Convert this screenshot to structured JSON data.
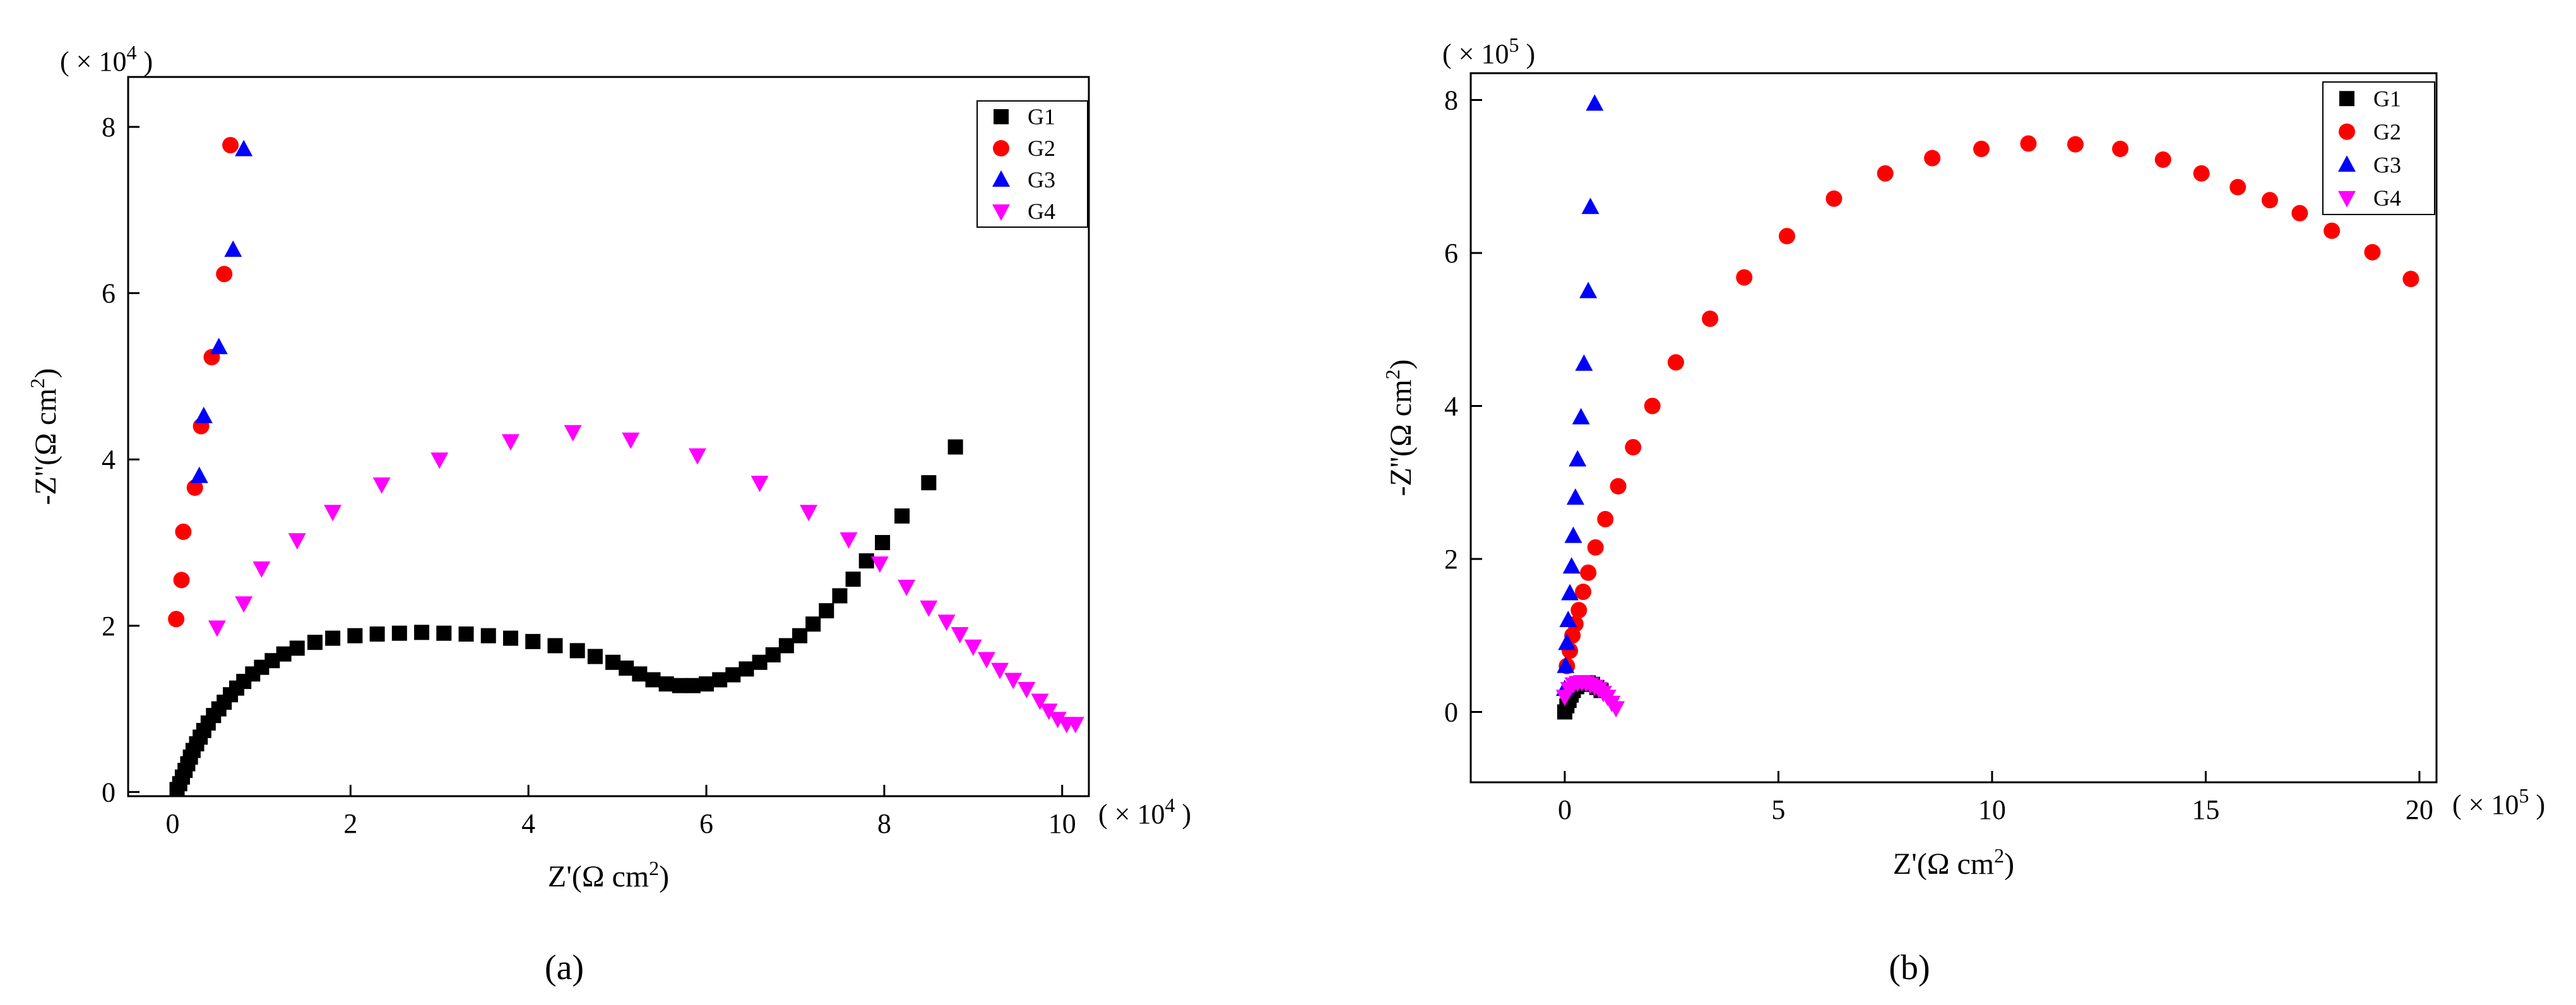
{
  "chart_data": [
    {
      "type": "scatter",
      "caption": "(a)",
      "xlabel": "Z'(Ω cm",
      "xlabel_sup": "2",
      "xlabel_end": ")",
      "ylabel": "-Z''(Ω cm",
      "ylabel_sup": "2",
      "ylabel_end": ")",
      "x_scale": {
        "prefix": "( × 10",
        "exp": "4",
        "suffix": " )"
      },
      "y_scale": {
        "prefix": "( × 10",
        "exp": "4",
        "suffix": " )"
      },
      "xlim": [
        -0.5,
        10.3
      ],
      "ylim": [
        -0.05,
        8.6
      ],
      "xticks": [
        0,
        2,
        4,
        6,
        8,
        10
      ],
      "yticks": [
        0,
        2,
        4,
        6,
        8
      ],
      "legend_position": "top-right",
      "series": [
        {
          "name": "G1",
          "marker": "square",
          "color": "#000000",
          "x": [
            0.05,
            0.08,
            0.11,
            0.14,
            0.17,
            0.2,
            0.23,
            0.27,
            0.31,
            0.35,
            0.4,
            0.46,
            0.52,
            0.58,
            0.65,
            0.72,
            0.8,
            0.9,
            1.0,
            1.12,
            1.25,
            1.4,
            1.6,
            1.8,
            2.05,
            2.3,
            2.55,
            2.8,
            3.05,
            3.3,
            3.55,
            3.8,
            4.05,
            4.3,
            4.55,
            4.75,
            4.95,
            5.1,
            5.25,
            5.4,
            5.55,
            5.7,
            5.85,
            6.0,
            6.15,
            6.3,
            6.45,
            6.6,
            6.75,
            6.9,
            7.05,
            7.2,
            7.35,
            7.5,
            7.65,
            7.8,
            7.98,
            8.2,
            8.5,
            8.8
          ],
          "y": [
            0.03,
            0.1,
            0.18,
            0.26,
            0.34,
            0.42,
            0.5,
            0.58,
            0.66,
            0.74,
            0.83,
            0.92,
            1.0,
            1.08,
            1.17,
            1.25,
            1.33,
            1.42,
            1.5,
            1.58,
            1.66,
            1.73,
            1.8,
            1.85,
            1.88,
            1.9,
            1.91,
            1.92,
            1.91,
            1.9,
            1.88,
            1.85,
            1.81,
            1.76,
            1.7,
            1.63,
            1.56,
            1.49,
            1.42,
            1.35,
            1.3,
            1.28,
            1.28,
            1.3,
            1.35,
            1.41,
            1.48,
            1.56,
            1.65,
            1.76,
            1.88,
            2.02,
            2.18,
            2.36,
            2.56,
            2.78,
            3.0,
            3.32,
            3.72,
            4.15
          ]
        },
        {
          "name": "G2",
          "marker": "circle",
          "color": "#ff0000",
          "x": [
            0.04,
            0.1,
            0.12,
            0.25,
            0.32,
            0.44,
            0.58,
            0.65
          ],
          "y": [
            2.08,
            2.55,
            3.13,
            3.66,
            4.4,
            5.23,
            6.23,
            7.78
          ]
        },
        {
          "name": "G3",
          "marker": "triangle-up",
          "color": "#0000ff",
          "x": [
            0.3,
            0.35,
            0.52,
            0.68,
            0.8
          ],
          "y": [
            3.8,
            4.52,
            5.35,
            6.52,
            7.73
          ]
        },
        {
          "name": "G4",
          "marker": "triangle-down",
          "color": "#ff00ff",
          "x": [
            0.5,
            0.8,
            1.0,
            1.4,
            1.8,
            2.35,
            3.0,
            3.8,
            4.5,
            5.15,
            5.9,
            6.6,
            7.15,
            7.6,
            7.95,
            8.25,
            8.5,
            8.7,
            8.85,
            9.0,
            9.15,
            9.3,
            9.45,
            9.6,
            9.75,
            9.85,
            9.95,
            10.05,
            10.15
          ],
          "y": [
            1.98,
            2.27,
            2.69,
            3.03,
            3.37,
            3.7,
            4.0,
            4.22,
            4.33,
            4.24,
            4.05,
            3.72,
            3.37,
            3.04,
            2.75,
            2.47,
            2.22,
            2.05,
            1.9,
            1.75,
            1.6,
            1.47,
            1.35,
            1.24,
            1.1,
            0.98,
            0.88,
            0.82,
            0.82
          ]
        }
      ]
    },
    {
      "type": "scatter",
      "caption": "(b)",
      "xlabel": "Z'(Ω cm",
      "xlabel_sup": "2",
      "xlabel_end": ")",
      "ylabel": "-Z''(Ω cm",
      "ylabel_sup": "2",
      "ylabel_end": ")",
      "x_scale": {
        "prefix": "( × 10",
        "exp": "5",
        "suffix": " )"
      },
      "y_scale": {
        "prefix": "( × 10",
        "exp": "5",
        "suffix": " )"
      },
      "xlim": [
        -2.2,
        20.4
      ],
      "ylim": [
        -0.92,
        8.35
      ],
      "xticks": [
        0,
        5,
        10,
        15,
        20
      ],
      "yticks": [
        0,
        2,
        4,
        6,
        8
      ],
      "legend_position": "top-right",
      "series": [
        {
          "name": "G1",
          "marker": "square",
          "color": "#000000",
          "x": [
            0.0,
            0.05,
            0.1,
            0.15,
            0.2,
            0.28,
            0.36,
            0.45,
            0.55,
            0.65,
            0.75,
            0.85
          ],
          "y": [
            0.0,
            0.08,
            0.15,
            0.22,
            0.28,
            0.33,
            0.36,
            0.38,
            0.38,
            0.36,
            0.32,
            0.28
          ]
        },
        {
          "name": "G2",
          "marker": "circle",
          "color": "#ff0000",
          "x": [
            0.05,
            0.12,
            0.18,
            0.25,
            0.33,
            0.43,
            0.55,
            0.72,
            0.95,
            1.25,
            1.6,
            2.05,
            2.6,
            3.4,
            4.2,
            5.2,
            6.3,
            7.5,
            8.6,
            9.75,
            10.85,
            11.95,
            13.0,
            14.0,
            14.9,
            15.75,
            16.5,
            17.2,
            17.95,
            18.9,
            19.8
          ],
          "y": [
            0.6,
            0.8,
            1.0,
            1.15,
            1.33,
            1.57,
            1.82,
            2.15,
            2.52,
            2.95,
            3.46,
            4.0,
            4.57,
            5.14,
            5.68,
            6.22,
            6.71,
            7.04,
            7.24,
            7.36,
            7.43,
            7.42,
            7.36,
            7.22,
            7.04,
            6.86,
            6.69,
            6.52,
            6.29,
            6.01,
            5.66
          ]
        },
        {
          "name": "G3",
          "marker": "triangle-up",
          "color": "#0000ff",
          "x": [
            0.0,
            0.02,
            0.05,
            0.08,
            0.12,
            0.16,
            0.2,
            0.25,
            0.3,
            0.38,
            0.45,
            0.55,
            0.6,
            0.7
          ],
          "y": [
            0.3,
            0.6,
            0.9,
            1.2,
            1.55,
            1.9,
            2.3,
            2.8,
            3.3,
            3.85,
            4.55,
            5.5,
            6.6,
            7.95
          ]
        },
        {
          "name": "G4",
          "marker": "triangle-down",
          "color": "#ff00ff",
          "x": [
            0.0,
            0.1,
            0.2,
            0.3,
            0.4,
            0.5,
            0.6,
            0.7,
            0.8,
            0.9,
            1.0,
            1.1,
            1.2
          ],
          "y": [
            0.2,
            0.3,
            0.36,
            0.38,
            0.39,
            0.38,
            0.36,
            0.33,
            0.3,
            0.25,
            0.2,
            0.12,
            0.05
          ]
        }
      ]
    }
  ]
}
